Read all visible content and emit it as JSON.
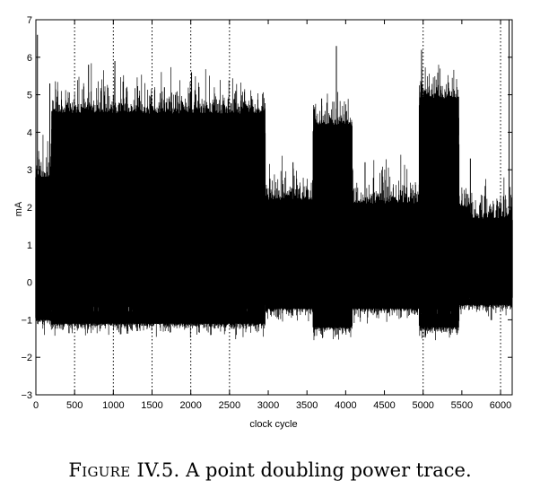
{
  "chart_data": {
    "type": "line",
    "xlabel": "clock cycle",
    "ylabel": "mA",
    "xlim": [
      0,
      6150
    ],
    "ylim": [
      -3,
      7
    ],
    "xticks": [
      0,
      500,
      1000,
      1500,
      2000,
      2500,
      3000,
      3500,
      4000,
      4500,
      5000,
      5500,
      6000
    ],
    "yticks": [
      -3,
      -2,
      -1,
      0,
      1,
      2,
      3,
      4,
      5,
      6,
      7
    ],
    "grid": "vertical dotted at x = 500, 1000, 1500, 2000, 2500, 5000, 6000",
    "series": [
      {
        "envelope": [
          {
            "x_start": 0,
            "x_end": 200,
            "max": 2.8,
            "min": -1.0
          },
          {
            "x_start": 200,
            "x_end": 2960,
            "max": 4.5,
            "min": -1.1
          },
          {
            "x_start": 2960,
            "x_end": 3580,
            "max": 2.2,
            "min": -0.7
          },
          {
            "x_start": 3580,
            "x_end": 4080,
            "max": 4.2,
            "min": -1.2
          },
          {
            "x_start": 4080,
            "x_end": 4950,
            "max": 2.1,
            "min": -0.7
          },
          {
            "x_start": 4950,
            "x_end": 5460,
            "max": 4.9,
            "min": -1.2
          },
          {
            "x_start": 5460,
            "x_end": 5600,
            "max": 2.0,
            "min": -0.6
          },
          {
            "x_start": 5600,
            "x_end": 6150,
            "max": 1.7,
            "min": -0.6
          }
        ],
        "peaks": [
          {
            "x": 20,
            "y": 6.6
          },
          {
            "x": 180,
            "y": 5.3
          },
          {
            "x": 680,
            "y": 5.8
          },
          {
            "x": 1000,
            "y": 5.0
          },
          {
            "x": 1020,
            "y": 5.9
          },
          {
            "x": 1660,
            "y": 5.2
          },
          {
            "x": 2010,
            "y": 5.6
          },
          {
            "x": 2580,
            "y": 5.1
          },
          {
            "x": 3320,
            "y": 3.2
          },
          {
            "x": 3690,
            "y": 4.9
          },
          {
            "x": 3880,
            "y": 6.3
          },
          {
            "x": 4250,
            "y": 3.2
          },
          {
            "x": 4980,
            "y": 6.2
          },
          {
            "x": 5230,
            "y": 5.1
          },
          {
            "x": 5610,
            "y": 3.3
          },
          {
            "x": 6110,
            "y": 7.0
          }
        ],
        "dips": [
          {
            "x": 3880,
            "y": -1.4
          },
          {
            "x": 5150,
            "y": -1.3
          },
          {
            "x": 6150,
            "y": -2.5
          }
        ]
      }
    ]
  },
  "caption": {
    "label": "Figure IV.5.",
    "text": "A point doubling power trace."
  }
}
